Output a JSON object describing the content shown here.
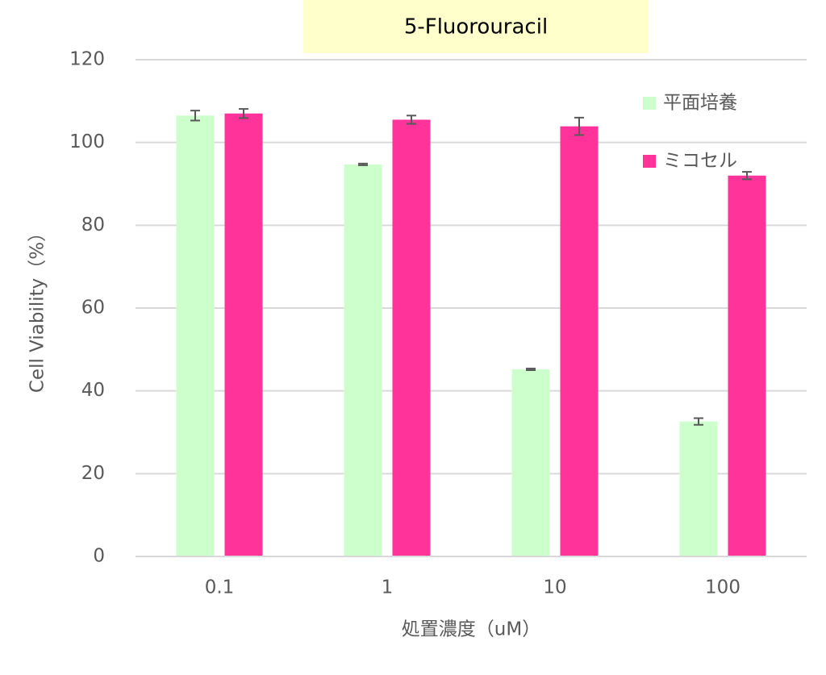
{
  "chart_data": {
    "type": "bar",
    "title": "5-Fluorouracil",
    "x_label": "処置濃度（uM）",
    "y_label": "Cell Viability（%）",
    "categories": [
      "0.1",
      "1",
      "10",
      "100"
    ],
    "series": [
      {
        "name": "平面培養",
        "color": "#ccffcc",
        "values": [
          106.5,
          94.7,
          45.2,
          32.6
        ],
        "errors": [
          1.2,
          0.2,
          0.2,
          0.8
        ]
      },
      {
        "name": "ミコセル",
        "color": "#ff3399",
        "values": [
          107,
          105.5,
          103.9,
          92
        ],
        "errors": [
          1.1,
          1,
          2.1,
          0.9
        ]
      }
    ],
    "ylim": [
      0,
      120
    ],
    "yticks": [
      0,
      20,
      40,
      60,
      80,
      100,
      120
    ],
    "grid": true,
    "legend": "upper right"
  }
}
